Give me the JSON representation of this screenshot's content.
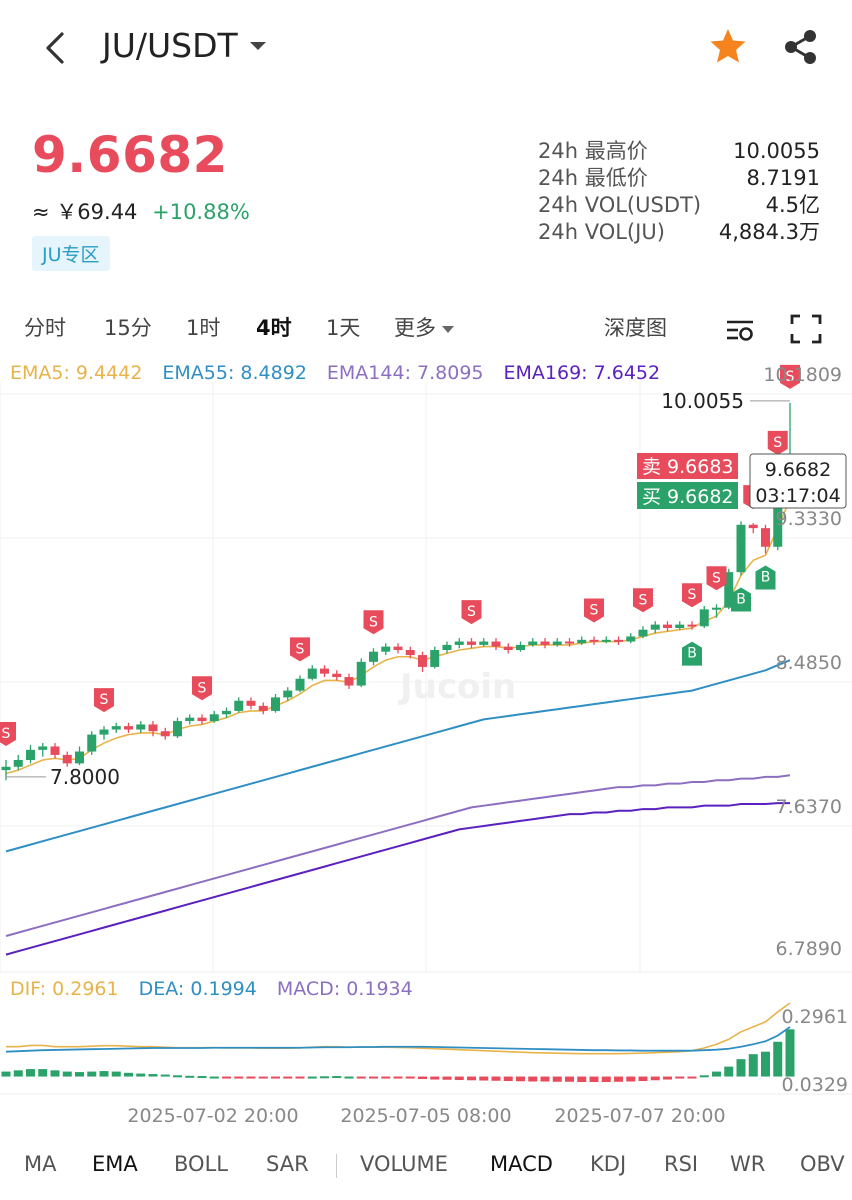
{
  "header": {
    "pair": "JU/USDT",
    "icons": {
      "back": "back-icon",
      "dropdown": "chevron-down-icon",
      "favorite": "star-icon",
      "share": "share-icon"
    }
  },
  "ticker": {
    "last_price": "9.6682",
    "approx_prefix": "≈",
    "cny_value": "￥69.44",
    "change": "+10.88%",
    "zone_label": "JU专区",
    "stats": [
      {
        "label": "24h 最高价",
        "value": "10.0055"
      },
      {
        "label": "24h 最低价",
        "value": "8.7191"
      },
      {
        "label": "24h VOL(USDT)",
        "value": "4.5亿"
      },
      {
        "label": "24h VOL(JU)",
        "value": "4,884.3万"
      }
    ],
    "colors": {
      "up": "#2aa26a",
      "down": "#e84c5c"
    }
  },
  "periods": {
    "items": [
      "分时",
      "15分",
      "1时",
      "4时",
      "1天",
      "更多"
    ],
    "active": "4时",
    "depth_label": "深度图"
  },
  "ema_legend": [
    {
      "label": "EMA5: 9.4442",
      "color": "#e8b34a"
    },
    {
      "label": "EMA55: 8.4892",
      "color": "#2f8fc4"
    },
    {
      "label": "EMA144: 7.8095",
      "color": "#8d6fc2"
    },
    {
      "label": "EMA169: 7.6452",
      "color": "#5a20c0"
    }
  ],
  "macd_legend": [
    {
      "label": "DIF: 0.2961",
      "color": "#e8b34a"
    },
    {
      "label": "DEA: 0.1994",
      "color": "#2f8fc4"
    },
    {
      "label": "MACD: 0.1934",
      "color": "#8d6fc2"
    }
  ],
  "chart_data": {
    "type": "candlestick",
    "price_axis_labels": [
      "10.1809",
      "9.3330",
      "8.4850",
      "7.6370",
      "6.7890"
    ],
    "price_axis_values": [
      10.1809,
      9.333,
      8.485,
      7.637,
      6.789
    ],
    "macd_axis_labels": [
      "0.2961",
      "0.0329"
    ],
    "x_tick_labels": [
      "2025-07-02 20:00",
      "2025-07-05 08:00",
      "2025-07-07 20:00"
    ],
    "high_marker": "10.0055",
    "low_marker": "7.8000",
    "ask_label": "卖 9.6683",
    "bid_label": "买 9.6682",
    "crosshair_price": "9.6682",
    "countdown": "03:17:04",
    "signal_s": "S",
    "signal_b": "B",
    "watermark": "Jucoin",
    "candles": [
      [
        7.84,
        7.86,
        7.78,
        7.9
      ],
      [
        7.86,
        7.9,
        7.84,
        7.93
      ],
      [
        7.9,
        7.96,
        7.88,
        7.99
      ],
      [
        7.96,
        7.98,
        7.92,
        8.0
      ],
      [
        7.98,
        7.93,
        7.91,
        8.0
      ],
      [
        7.93,
        7.88,
        7.86,
        7.95
      ],
      [
        7.88,
        7.95,
        7.87,
        7.98
      ],
      [
        7.95,
        8.05,
        7.93,
        8.07
      ],
      [
        8.05,
        8.08,
        8.02,
        8.1
      ],
      [
        8.08,
        8.1,
        8.06,
        8.12
      ],
      [
        8.1,
        8.08,
        8.06,
        8.12
      ],
      [
        8.08,
        8.11,
        8.06,
        8.13
      ],
      [
        8.11,
        8.07,
        8.04,
        8.13
      ],
      [
        8.07,
        8.04,
        8.02,
        8.09
      ],
      [
        8.04,
        8.13,
        8.03,
        8.15
      ],
      [
        8.13,
        8.15,
        8.11,
        8.17
      ],
      [
        8.15,
        8.13,
        8.11,
        8.17
      ],
      [
        8.13,
        8.17,
        8.12,
        8.19
      ],
      [
        8.17,
        8.19,
        8.15,
        8.21
      ],
      [
        8.19,
        8.25,
        8.18,
        8.27
      ],
      [
        8.25,
        8.22,
        8.2,
        8.27
      ],
      [
        8.22,
        8.19,
        8.17,
        8.24
      ],
      [
        8.19,
        8.27,
        8.18,
        8.29
      ],
      [
        8.27,
        8.31,
        8.25,
        8.33
      ],
      [
        8.31,
        8.38,
        8.3,
        8.4
      ],
      [
        8.38,
        8.44,
        8.37,
        8.46
      ],
      [
        8.44,
        8.41,
        8.39,
        8.46
      ],
      [
        8.41,
        8.39,
        8.37,
        8.43
      ],
      [
        8.39,
        8.34,
        8.32,
        8.41
      ],
      [
        8.34,
        8.48,
        8.33,
        8.5
      ],
      [
        8.48,
        8.54,
        8.46,
        8.56
      ],
      [
        8.54,
        8.57,
        8.52,
        8.59
      ],
      [
        8.57,
        8.55,
        8.53,
        8.59
      ],
      [
        8.55,
        8.52,
        8.5,
        8.57
      ],
      [
        8.52,
        8.45,
        8.42,
        8.54
      ],
      [
        8.45,
        8.55,
        8.44,
        8.57
      ],
      [
        8.55,
        8.58,
        8.53,
        8.6
      ],
      [
        8.58,
        8.6,
        8.56,
        8.62
      ],
      [
        8.6,
        8.58,
        8.56,
        8.62
      ],
      [
        8.58,
        8.6,
        8.57,
        8.62
      ],
      [
        8.6,
        8.57,
        8.55,
        8.62
      ],
      [
        8.57,
        8.55,
        8.53,
        8.59
      ],
      [
        8.55,
        8.58,
        8.54,
        8.6
      ],
      [
        8.58,
        8.6,
        8.57,
        8.62
      ],
      [
        8.6,
        8.58,
        8.56,
        8.62
      ],
      [
        8.58,
        8.6,
        8.57,
        8.62
      ],
      [
        8.6,
        8.59,
        8.57,
        8.62
      ],
      [
        8.59,
        8.61,
        8.58,
        8.63
      ],
      [
        8.61,
        8.6,
        8.58,
        8.63
      ],
      [
        8.6,
        8.61,
        8.59,
        8.63
      ],
      [
        8.61,
        8.6,
        8.58,
        8.63
      ],
      [
        8.6,
        8.63,
        8.59,
        8.65
      ],
      [
        8.63,
        8.67,
        8.62,
        8.69
      ],
      [
        8.67,
        8.7,
        8.65,
        8.72
      ],
      [
        8.7,
        8.68,
        8.66,
        8.72
      ],
      [
        8.68,
        8.7,
        8.67,
        8.72
      ],
      [
        8.7,
        8.69,
        8.67,
        8.72
      ],
      [
        8.69,
        8.79,
        8.68,
        8.81
      ],
      [
        8.79,
        8.8,
        8.74,
        8.82
      ],
      [
        8.8,
        9.01,
        8.79,
        9.03
      ],
      [
        9.01,
        9.29,
        8.99,
        9.31
      ],
      [
        9.29,
        9.27,
        9.24,
        9.3
      ],
      [
        9.27,
        9.16,
        9.12,
        9.29
      ],
      [
        9.16,
        9.6,
        9.14,
        9.62
      ],
      [
        9.6,
        9.67,
        9.58,
        10.01
      ]
    ],
    "ema_series": {
      "EMA5": [
        7.82,
        7.84,
        7.87,
        7.9,
        7.91,
        7.9,
        7.91,
        7.96,
        8.0,
        8.03,
        8.05,
        8.06,
        8.06,
        8.05,
        8.08,
        8.1,
        8.11,
        8.13,
        8.15,
        8.18,
        8.19,
        8.19,
        8.22,
        8.25,
        8.29,
        8.34,
        8.37,
        8.37,
        8.36,
        8.4,
        8.45,
        8.49,
        8.51,
        8.51,
        8.49,
        8.51,
        8.53,
        8.55,
        8.56,
        8.57,
        8.57,
        8.56,
        8.57,
        8.58,
        8.58,
        8.58,
        8.58,
        8.59,
        8.6,
        8.6,
        8.6,
        8.61,
        8.63,
        8.65,
        8.66,
        8.67,
        8.68,
        8.72,
        8.75,
        8.84,
        8.99,
        9.08,
        9.11,
        9.27,
        9.44
      ],
      "EMA55": [
        7.36,
        7.38,
        7.4,
        7.42,
        7.44,
        7.46,
        7.48,
        7.5,
        7.52,
        7.54,
        7.56,
        7.58,
        7.6,
        7.62,
        7.64,
        7.66,
        7.68,
        7.7,
        7.72,
        7.74,
        7.76,
        7.78,
        7.8,
        7.82,
        7.84,
        7.86,
        7.88,
        7.9,
        7.92,
        7.94,
        7.96,
        7.98,
        8.0,
        8.02,
        8.04,
        8.06,
        8.08,
        8.1,
        8.12,
        8.14,
        8.15,
        8.16,
        8.17,
        8.18,
        8.19,
        8.2,
        8.21,
        8.22,
        8.23,
        8.24,
        8.25,
        8.26,
        8.27,
        8.28,
        8.29,
        8.3,
        8.31,
        8.33,
        8.35,
        8.37,
        8.39,
        8.41,
        8.43,
        8.46,
        8.49
      ],
      "EMA144": [
        6.86,
        6.88,
        6.9,
        6.92,
        6.94,
        6.96,
        6.98,
        7.0,
        7.02,
        7.04,
        7.06,
        7.08,
        7.1,
        7.12,
        7.14,
        7.16,
        7.18,
        7.2,
        7.22,
        7.24,
        7.26,
        7.28,
        7.3,
        7.32,
        7.34,
        7.36,
        7.38,
        7.4,
        7.42,
        7.44,
        7.46,
        7.48,
        7.5,
        7.52,
        7.54,
        7.56,
        7.58,
        7.6,
        7.62,
        7.63,
        7.64,
        7.65,
        7.66,
        7.67,
        7.68,
        7.69,
        7.7,
        7.71,
        7.72,
        7.73,
        7.74,
        7.74,
        7.75,
        7.75,
        7.76,
        7.76,
        7.77,
        7.77,
        7.78,
        7.78,
        7.79,
        7.79,
        7.8,
        7.8,
        7.81
      ],
      "EMA169": [
        6.75,
        6.77,
        6.79,
        6.81,
        6.83,
        6.85,
        6.87,
        6.89,
        6.91,
        6.93,
        6.95,
        6.97,
        6.99,
        7.01,
        7.03,
        7.05,
        7.07,
        7.09,
        7.11,
        7.13,
        7.15,
        7.17,
        7.19,
        7.21,
        7.23,
        7.25,
        7.27,
        7.29,
        7.31,
        7.33,
        7.35,
        7.37,
        7.39,
        7.41,
        7.43,
        7.45,
        7.47,
        7.49,
        7.5,
        7.51,
        7.52,
        7.53,
        7.54,
        7.55,
        7.56,
        7.57,
        7.58,
        7.58,
        7.59,
        7.59,
        7.6,
        7.6,
        7.61,
        7.61,
        7.62,
        7.62,
        7.62,
        7.63,
        7.63,
        7.63,
        7.64,
        7.64,
        7.64,
        7.645,
        7.6452
      ]
    },
    "signals": [
      {
        "i": 0,
        "t": "S"
      },
      {
        "i": 8,
        "t": "S"
      },
      {
        "i": 16,
        "t": "S"
      },
      {
        "i": 24,
        "t": "S"
      },
      {
        "i": 30,
        "t": "S"
      },
      {
        "i": 38,
        "t": "S"
      },
      {
        "i": 48,
        "t": "S"
      },
      {
        "i": 52,
        "t": "S"
      },
      {
        "i": 56,
        "t": "S"
      },
      {
        "i": 58,
        "t": "S"
      },
      {
        "i": 61,
        "t": "S"
      },
      {
        "i": 63,
        "t": "S"
      },
      {
        "i": 64,
        "t": "S"
      },
      {
        "i": 56,
        "t": "B"
      },
      {
        "i": 60,
        "t": "B"
      },
      {
        "i": 62,
        "t": "B"
      }
    ],
    "macd": {
      "hist": [
        0.02,
        0.025,
        0.03,
        0.03,
        0.025,
        0.02,
        0.018,
        0.02,
        0.022,
        0.02,
        0.015,
        0.012,
        0.01,
        0.008,
        0.005,
        0.003,
        0.002,
        0.0,
        -0.002,
        -0.003,
        -0.004,
        -0.004,
        -0.003,
        -0.002,
        -0.001,
        0.0,
        0.001,
        0.002,
        0.0,
        -0.002,
        -0.003,
        -0.004,
        -0.006,
        -0.008,
        -0.01,
        -0.012,
        -0.013,
        -0.014,
        -0.015,
        -0.016,
        -0.017,
        -0.018,
        -0.019,
        -0.02,
        -0.02,
        -0.021,
        -0.021,
        -0.022,
        -0.022,
        -0.022,
        -0.021,
        -0.02,
        -0.018,
        -0.015,
        -0.012,
        -0.008,
        -0.004,
        0.005,
        0.02,
        0.04,
        0.07,
        0.09,
        0.1,
        0.14,
        0.19
      ],
      "dif": [
        0.12,
        0.12,
        0.125,
        0.125,
        0.12,
        0.12,
        0.12,
        0.122,
        0.124,
        0.124,
        0.122,
        0.12,
        0.12,
        0.118,
        0.116,
        0.116,
        0.116,
        0.116,
        0.115,
        0.115,
        0.115,
        0.114,
        0.114,
        0.114,
        0.115,
        0.118,
        0.12,
        0.12,
        0.118,
        0.118,
        0.118,
        0.118,
        0.117,
        0.116,
        0.114,
        0.112,
        0.11,
        0.108,
        0.106,
        0.104,
        0.102,
        0.1,
        0.098,
        0.096,
        0.095,
        0.094,
        0.093,
        0.092,
        0.092,
        0.092,
        0.092,
        0.093,
        0.094,
        0.096,
        0.098,
        0.1,
        0.104,
        0.115,
        0.13,
        0.15,
        0.18,
        0.2,
        0.22,
        0.26,
        0.2961
      ],
      "dea": [
        0.1,
        0.102,
        0.104,
        0.106,
        0.107,
        0.108,
        0.109,
        0.11,
        0.111,
        0.112,
        0.113,
        0.114,
        0.115,
        0.115,
        0.115,
        0.115,
        0.115,
        0.116,
        0.116,
        0.116,
        0.116,
        0.116,
        0.116,
        0.116,
        0.116,
        0.117,
        0.118,
        0.118,
        0.118,
        0.119,
        0.119,
        0.12,
        0.12,
        0.12,
        0.12,
        0.119,
        0.118,
        0.117,
        0.116,
        0.115,
        0.114,
        0.113,
        0.112,
        0.111,
        0.11,
        0.109,
        0.108,
        0.107,
        0.106,
        0.106,
        0.105,
        0.105,
        0.104,
        0.104,
        0.104,
        0.104,
        0.104,
        0.106,
        0.108,
        0.112,
        0.12,
        0.13,
        0.142,
        0.165,
        0.1994
      ]
    }
  },
  "indicators": {
    "main": [
      "MA",
      "EMA",
      "BOLL",
      "SAR"
    ],
    "sub": [
      "VOLUME",
      "MACD",
      "KDJ",
      "RSI",
      "WR",
      "OBV"
    ],
    "active": [
      "EMA",
      "MACD"
    ]
  }
}
